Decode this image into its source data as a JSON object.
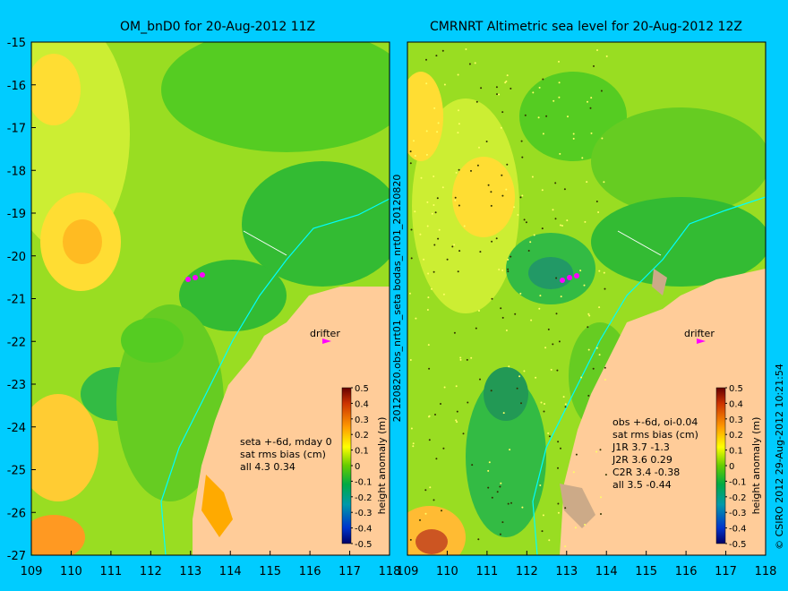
{
  "chart_data": [
    {
      "type": "heatmap",
      "title": "OM_bnD0 for 20-Aug-2012 11Z",
      "xlim": [
        109,
        118
      ],
      "ylim": [
        -27,
        -15
      ],
      "x_ticks": [
        "109",
        "110",
        "111",
        "112",
        "113",
        "114",
        "115",
        "116",
        "117",
        "118"
      ],
      "y_ticks": [
        "-15",
        "-16",
        "-17",
        "-18",
        "-19",
        "-20",
        "-21",
        "-22",
        "-23",
        "-24",
        "-25",
        "-26",
        "-27"
      ],
      "annotation": "drifter",
      "stats_lines": [
        "seta +-6d, mday 0",
        "sat rms bias (cm)",
        "all 4.3 0.34"
      ],
      "colorbar": {
        "label": "height anomaly (m)",
        "range": [
          -0.5,
          0.5
        ],
        "ticks": [
          "0.5",
          "0.4",
          "0.3",
          "0.2",
          "0.1",
          "0",
          "-0.1",
          "-0.2",
          "-0.3",
          "-0.4",
          "-0.5"
        ]
      }
    },
    {
      "type": "heatmap",
      "title": "CMRNRT Altimetric sea level  for 20-Aug-2012 12Z",
      "xlim": [
        109,
        118
      ],
      "ylim": [
        -27,
        -15
      ],
      "x_ticks": [
        "109",
        "110",
        "111",
        "112",
        "113",
        "114",
        "115",
        "116",
        "117",
        "118"
      ],
      "y_ticks": [],
      "annotation": "drifter",
      "stats_lines": [
        "obs +-6d, oi-0.04",
        "sat rms bias (cm)",
        "J1R   3.7 -1.3",
        "J2R   3.6 0.29",
        "C2R   3.4 -0.38",
        "all 3.5 -0.44"
      ],
      "colorbar": {
        "label": "height anomaly (m)",
        "range": [
          -0.5,
          0.5
        ],
        "ticks": [
          "0.5",
          "0.4",
          "0.3",
          "0.2",
          "0.1",
          "0",
          "-0.1",
          "-0.2",
          "-0.3",
          "-0.4",
          "-0.5"
        ]
      }
    }
  ],
  "side_labels": {
    "middle": "20120820.obs_nrt01_seta      bodas_nrt01_20120820",
    "right": "© CSIRO 2012   29-Aug-2012 10:21:54"
  },
  "colors": {
    "background": "#00ccff",
    "land": "#ffcc99",
    "coastline_contour": "#00ffff",
    "drifter": "#ff00ff"
  }
}
